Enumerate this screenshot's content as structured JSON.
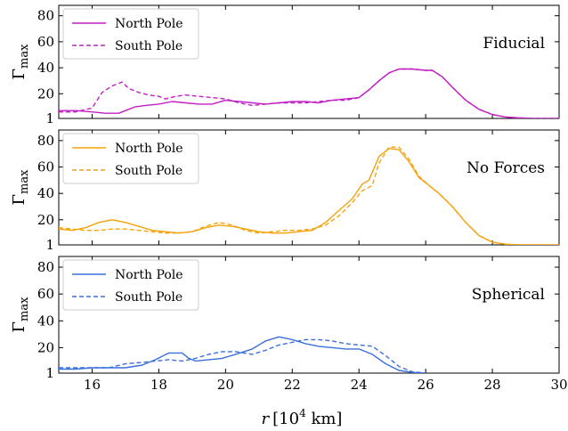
{
  "figure": {
    "xlabel_var": "r",
    "xlabel_unit": "[10",
    "xlabel_exp": "4",
    "xlabel_unit2": " km]",
    "ylabel_main": "Γ",
    "ylabel_sub": "max"
  },
  "chart_data": [
    {
      "type": "line",
      "title": "Fiducial",
      "xlim": [
        15,
        30
      ],
      "ylim": [
        1,
        88
      ],
      "yticks": [
        1,
        20,
        40,
        60,
        80
      ],
      "xticks": [
        16,
        18,
        20,
        22,
        24,
        26,
        28,
        30
      ],
      "color": "#c11fc4",
      "legend_position": "top-left",
      "series": [
        {
          "name": "North Pole",
          "style": "solid",
          "x": [
            15.0,
            15.5,
            16.0,
            16.4,
            16.8,
            17.0,
            17.3,
            17.6,
            18.0,
            18.4,
            18.8,
            19.2,
            19.6,
            20.0,
            20.4,
            20.8,
            21.2,
            21.6,
            22.0,
            22.4,
            22.8,
            23.2,
            23.6,
            24.0,
            24.3,
            24.6,
            24.9,
            25.2,
            25.6,
            26.0,
            26.2,
            26.5,
            26.8,
            27.2,
            27.6,
            28.0,
            28.4,
            28.8,
            29.2,
            30.0
          ],
          "y": [
            7,
            7,
            6,
            5,
            5,
            7,
            10,
            11,
            12,
            14,
            13,
            12,
            12,
            15,
            14,
            13,
            12,
            13,
            14,
            14,
            13,
            15,
            16,
            17,
            23,
            30,
            36,
            39,
            39,
            38,
            38,
            33,
            25,
            15,
            8,
            4,
            2,
            1.5,
            1,
            1
          ]
        },
        {
          "name": "South Pole",
          "style": "dashed",
          "x": [
            15.0,
            15.5,
            16.0,
            16.3,
            16.6,
            16.9,
            17.1,
            17.4,
            17.7,
            18.0,
            18.2,
            18.5,
            18.8,
            19.2,
            19.6,
            20.0,
            20.4,
            20.8,
            21.2,
            21.6,
            22.0,
            22.4,
            22.8,
            23.2,
            23.6,
            24.0,
            24.3,
            24.6,
            24.9,
            25.2,
            25.6,
            26.0,
            26.2,
            26.5,
            26.8,
            27.2,
            27.6,
            28.0,
            28.4,
            28.8,
            29.2,
            30.0
          ],
          "y": [
            6,
            6,
            9,
            21,
            26,
            29,
            24,
            21,
            19,
            18,
            16,
            18,
            19,
            18,
            17,
            16,
            13,
            11,
            12,
            13,
            13,
            13,
            14,
            15,
            15,
            17,
            23,
            30,
            36,
            39,
            39,
            38,
            38,
            33,
            25,
            15,
            8,
            4,
            2,
            1.5,
            1,
            1
          ]
        }
      ]
    },
    {
      "type": "line",
      "title": "No Forces",
      "xlim": [
        15,
        30
      ],
      "ylim": [
        1,
        88
      ],
      "yticks": [
        1,
        20,
        40,
        60,
        80
      ],
      "xticks": [
        16,
        18,
        20,
        22,
        24,
        26,
        28,
        30
      ],
      "color": "#f5a20d",
      "legend_position": "top-left",
      "series": [
        {
          "name": "North Pole",
          "style": "solid",
          "x": [
            15.0,
            15.4,
            15.8,
            16.2,
            16.6,
            17.0,
            17.4,
            17.8,
            18.2,
            18.6,
            19.0,
            19.4,
            19.8,
            20.2,
            20.6,
            21.0,
            21.4,
            21.8,
            22.2,
            22.6,
            23.0,
            23.4,
            23.8,
            24.1,
            24.3,
            24.6,
            24.9,
            25.2,
            25.5,
            25.8,
            26.1,
            26.4,
            26.8,
            27.2,
            27.6,
            28.0,
            28.4,
            28.8,
            29.2,
            30.0
          ],
          "y": [
            13,
            12,
            14,
            18,
            20,
            18,
            15,
            12,
            11,
            10,
            11,
            14,
            16,
            15,
            13,
            11,
            10,
            10,
            11,
            12,
            18,
            27,
            36,
            47,
            50,
            68,
            74,
            73,
            64,
            52,
            46,
            40,
            30,
            18,
            8,
            3,
            1.5,
            1,
            1,
            1
          ]
        },
        {
          "name": "South Pole",
          "style": "dashed",
          "x": [
            15.0,
            15.4,
            15.8,
            16.2,
            16.6,
            17.0,
            17.4,
            17.8,
            18.2,
            18.6,
            19.0,
            19.4,
            19.8,
            20.2,
            20.6,
            21.0,
            21.4,
            21.8,
            22.2,
            22.6,
            23.0,
            23.4,
            23.8,
            24.1,
            24.4,
            24.6,
            24.9,
            25.2,
            25.5,
            25.8,
            26.1,
            26.4,
            26.8,
            27.2,
            27.6,
            28.0,
            28.4,
            28.8,
            29.2,
            30.0
          ],
          "y": [
            14,
            13,
            12,
            12,
            13,
            13,
            12,
            11,
            10,
            10,
            11,
            15,
            18,
            16,
            12,
            10,
            11,
            12,
            12,
            13,
            16,
            23,
            33,
            42,
            46,
            63,
            75,
            75,
            66,
            53,
            46,
            40,
            30,
            18,
            8,
            3,
            1.5,
            1,
            1,
            1
          ]
        }
      ]
    },
    {
      "type": "line",
      "title": "Spherical",
      "xlim": [
        15,
        30
      ],
      "ylim": [
        1,
        88
      ],
      "yticks": [
        1,
        20,
        40,
        60,
        80
      ],
      "xticks": [
        16,
        18,
        20,
        22,
        24,
        26,
        28,
        30
      ],
      "color": "#3b6fdc",
      "legend_position": "top-left",
      "series": [
        {
          "name": "North Pole",
          "style": "solid",
          "x": [
            15.0,
            15.5,
            16.0,
            16.5,
            17.0,
            17.5,
            17.9,
            18.3,
            18.7,
            18.9,
            19.1,
            19.5,
            19.9,
            20.3,
            20.8,
            21.2,
            21.6,
            22.0,
            22.4,
            22.8,
            23.2,
            23.6,
            24.0,
            24.4,
            24.8,
            25.2,
            25.6,
            26.0
          ],
          "y": [
            4,
            4,
            5,
            5,
            5,
            7,
            11,
            16,
            16,
            12,
            10,
            11,
            12,
            15,
            19,
            25,
            28,
            26,
            23,
            21,
            20,
            19,
            19,
            15,
            8,
            3,
            1.5,
            1
          ]
        },
        {
          "name": "South Pole",
          "style": "dashed",
          "x": [
            15.0,
            15.5,
            16.0,
            16.5,
            17.0,
            17.5,
            17.9,
            18.3,
            18.7,
            19.1,
            19.5,
            19.9,
            20.3,
            20.8,
            21.2,
            21.6,
            22.0,
            22.4,
            22.8,
            23.2,
            23.6,
            24.0,
            24.4,
            24.8,
            25.2,
            25.6,
            26.0
          ],
          "y": [
            5,
            5,
            5,
            5,
            8,
            9,
            10,
            11,
            10,
            12,
            15,
            17,
            17,
            15,
            18,
            22,
            24,
            26,
            26,
            25,
            23,
            22,
            21,
            14,
            6,
            2,
            1
          ]
        }
      ]
    }
  ]
}
